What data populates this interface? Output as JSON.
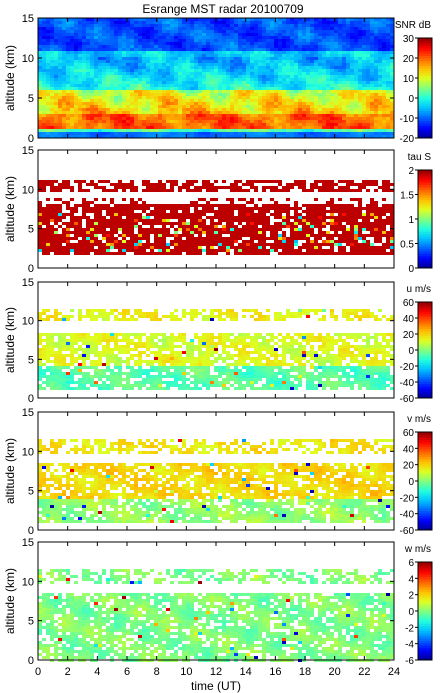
{
  "title": "Esrange MST radar 20100709",
  "xlabel": "time (UT)",
  "ylabel": "altitude (km)",
  "colormap": [
    "#00008f",
    "#0000ff",
    "#0060ff",
    "#00bfff",
    "#20ffdf",
    "#80ff80",
    "#dfff20",
    "#ffbf00",
    "#ff6000",
    "#ff0000",
    "#8f0000"
  ],
  "chart_data": [
    {
      "type": "heatmap",
      "quantity": "SNR",
      "unit_label": "SNR dB",
      "x": {
        "range": [
          0,
          24
        ],
        "ticks": [
          0,
          2,
          4,
          6,
          8,
          10,
          12,
          14,
          16,
          18,
          20,
          22,
          24
        ]
      },
      "y": {
        "range": [
          0,
          15
        ],
        "ticks": [
          0,
          5,
          10,
          15
        ]
      },
      "colorbar": {
        "range": [
          -20,
          30
        ],
        "ticks": [
          -20,
          -10,
          0,
          10,
          20,
          30
        ],
        "tick_labels": [
          "-20",
          "-10",
          "0",
          "10",
          "20",
          "30"
        ]
      },
      "regions": [
        {
          "alt_range": [
            0.5,
            2.5
          ],
          "value": "~15 to 25"
        },
        {
          "alt_range": [
            2.5,
            6
          ],
          "value": "~10 to 25"
        },
        {
          "alt_range": [
            6,
            10
          ],
          "value": "~-5 to 5"
        },
        {
          "alt_range": [
            10,
            15
          ],
          "value": "~-15 to -5"
        }
      ]
    },
    {
      "type": "heatmap",
      "quantity": "tau",
      "unit_label": "tau S",
      "x": {
        "range": [
          0,
          24
        ],
        "ticks": [
          0,
          2,
          4,
          6,
          8,
          10,
          12,
          14,
          16,
          18,
          20,
          22,
          24
        ]
      },
      "y": {
        "range": [
          0,
          15
        ],
        "ticks": [
          0,
          5,
          10,
          15
        ]
      },
      "colorbar": {
        "range": [
          0,
          2
        ],
        "ticks": [
          0,
          0.5,
          1,
          1.5,
          2
        ],
        "tick_labels": [
          "0",
          "0.5",
          "1",
          "1.5",
          "2"
        ]
      },
      "regions": [
        {
          "alt_range": [
            1.5,
            8
          ],
          "value": "~2 (saturated)"
        },
        {
          "alt_range": [
            10,
            11
          ],
          "value": "~2 (saturated)"
        }
      ]
    },
    {
      "type": "heatmap",
      "quantity": "u",
      "unit_label": "u m/s",
      "x": {
        "range": [
          0,
          24
        ],
        "ticks": [
          0,
          2,
          4,
          6,
          8,
          10,
          12,
          14,
          16,
          18,
          20,
          22,
          24
        ]
      },
      "y": {
        "range": [
          0,
          15
        ],
        "ticks": [
          0,
          5,
          10,
          15
        ]
      },
      "colorbar": {
        "range": [
          -60,
          60
        ],
        "ticks": [
          -60,
          -40,
          -20,
          0,
          20,
          40,
          60
        ],
        "tick_labels": [
          "-60",
          "-40",
          "-20",
          "0",
          "20",
          "40",
          "60"
        ]
      },
      "regions": [
        {
          "alt_range": [
            1,
            4
          ],
          "value": "~-5 to 0"
        },
        {
          "alt_range": [
            4,
            8
          ],
          "value": "~5 to 10"
        },
        {
          "alt_range": [
            10,
            11.5
          ],
          "value": "~10"
        }
      ]
    },
    {
      "type": "heatmap",
      "quantity": "v",
      "unit_label": "v m/s",
      "x": {
        "range": [
          0,
          24
        ],
        "ticks": [
          0,
          2,
          4,
          6,
          8,
          10,
          12,
          14,
          16,
          18,
          20,
          22,
          24
        ]
      },
      "y": {
        "range": [
          0,
          15
        ],
        "ticks": [
          0,
          5,
          10,
          15
        ]
      },
      "colorbar": {
        "range": [
          -60,
          60
        ],
        "ticks": [
          -60,
          -40,
          -20,
          0,
          20,
          40,
          60
        ],
        "tick_labels": [
          "-60",
          "-40",
          "-20",
          "0",
          "20",
          "40",
          "60"
        ]
      },
      "regions": [
        {
          "alt_range": [
            1,
            4
          ],
          "value": "~0"
        },
        {
          "alt_range": [
            4,
            8.5
          ],
          "value": "~10 to 20"
        },
        {
          "alt_range": [
            10,
            11
          ],
          "value": "~15"
        }
      ]
    },
    {
      "type": "heatmap",
      "quantity": "w",
      "unit_label": "w m/s",
      "x": {
        "range": [
          0,
          24
        ],
        "ticks": [
          0,
          2,
          4,
          6,
          8,
          10,
          12,
          14,
          16,
          18,
          20,
          22,
          24
        ]
      },
      "y": {
        "range": [
          0,
          15
        ],
        "ticks": [
          0,
          5,
          10,
          15
        ]
      },
      "colorbar": {
        "range": [
          -6,
          6
        ],
        "ticks": [
          -6,
          -4,
          -2,
          0,
          2,
          4,
          6
        ],
        "tick_labels": [
          "-6",
          "-4",
          "-2",
          "0",
          "2",
          "4",
          "6"
        ]
      },
      "regions": [
        {
          "alt_range": [
            0.5,
            8
          ],
          "value": "~0"
        },
        {
          "alt_range": [
            10,
            11
          ],
          "value": "~0"
        }
      ]
    }
  ]
}
